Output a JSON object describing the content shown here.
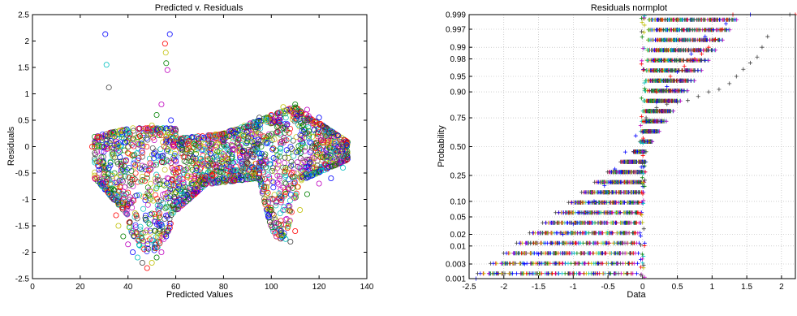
{
  "chart_data": [
    {
      "type": "scatter",
      "title": "Predicted v. Residuals",
      "xlabel": "Predicted Values",
      "ylabel": "Residuals",
      "xlim": [
        0,
        140
      ],
      "ylim": [
        -2.5,
        2.5
      ],
      "xticks": [
        "0",
        "20",
        "40",
        "60",
        "80",
        "100",
        "120",
        "140"
      ],
      "yticks": [
        "-2.5",
        "-2",
        "-1.5",
        "-1",
        "-0.5",
        "0",
        "0.5",
        "1",
        "1.5",
        "2",
        "2.5"
      ],
      "grid": false,
      "marker": "circle",
      "colors": [
        "#0000ff",
        "#008000",
        "#ff0000",
        "#00bfbf",
        "#bf00bf",
        "#bfbf00",
        "#404040"
      ],
      "series": [
        {
          "values": [
            [
              30.5,
              2.13
            ],
            [
              31,
              1.55
            ],
            [
              32,
              1.12
            ],
            [
              55.5,
              1.95
            ],
            [
              55.8,
              1.78
            ],
            [
              56,
              1.58
            ],
            [
              56.5,
              1.45
            ],
            [
              57.5,
              2.13
            ],
            [
              27,
              0.0
            ],
            [
              26,
              0.0
            ],
            [
              25,
              0.0
            ],
            [
              28,
              0.0
            ],
            [
              29,
              0.0
            ],
            [
              30,
              0.0
            ],
            [
              32,
              -0.4
            ],
            [
              33,
              -0.7
            ],
            [
              34,
              -1.0
            ],
            [
              35,
              -1.3
            ],
            [
              36,
              -1.5
            ],
            [
              38,
              -1.7
            ],
            [
              40,
              -1.85
            ],
            [
              42,
              -2.0
            ],
            [
              44,
              -2.1
            ],
            [
              46,
              -2.2
            ],
            [
              48,
              -2.3
            ],
            [
              50,
              -2.2
            ],
            [
              52,
              -2.1
            ],
            [
              54,
              -2.0
            ],
            [
              56,
              -1.7
            ],
            [
              40,
              0.3
            ],
            [
              42,
              0.15
            ],
            [
              45,
              0.2
            ],
            [
              50,
              0.4
            ],
            [
              52,
              0.6
            ],
            [
              54,
              0.8
            ],
            [
              58,
              0.5
            ],
            [
              60,
              0.2
            ],
            [
              62,
              0.1
            ],
            [
              65,
              0.05
            ],
            [
              70,
              0.0
            ],
            [
              75,
              0.05
            ],
            [
              80,
              0.1
            ],
            [
              85,
              0.25
            ],
            [
              90,
              0.4
            ],
            [
              95,
              0.55
            ],
            [
              100,
              0.6
            ],
            [
              105,
              0.75
            ],
            [
              110,
              0.8
            ],
            [
              115,
              0.7
            ],
            [
              120,
              0.55
            ],
            [
              125,
              0.3
            ],
            [
              130,
              0.0
            ],
            [
              95,
              -0.5
            ],
            [
              98,
              -0.9
            ],
            [
              100,
              -1.2
            ],
            [
              102,
              -1.45
            ],
            [
              104,
              -1.6
            ],
            [
              106,
              -1.75
            ],
            [
              108,
              -1.8
            ],
            [
              110,
              -1.6
            ],
            [
              112,
              -1.2
            ],
            [
              115,
              -0.9
            ],
            [
              120,
              -0.7
            ],
            [
              125,
              -0.6
            ],
            [
              130,
              -0.4
            ],
            [
              132,
              -0.2
            ],
            [
              60,
              -0.5
            ],
            [
              65,
              -0.55
            ],
            [
              70,
              -0.65
            ],
            [
              75,
              -0.7
            ],
            [
              80,
              -0.6
            ],
            [
              85,
              -0.45
            ],
            [
              90,
              -0.3
            ]
          ]
        }
      ]
    },
    {
      "type": "scatter",
      "title": "Residuals normplot",
      "xlabel": "Data",
      "ylabel": "Probability",
      "xlim": [
        -2.5,
        2.2
      ],
      "xticks": [
        "-2.5",
        "-2",
        "-1.5",
        "-1",
        "-0.5",
        "0",
        "0.5",
        "1",
        "1.5",
        "2"
      ],
      "yticks": [
        "0.001",
        "0.003",
        "0.01",
        "0.02",
        "0.05",
        "0.10",
        "0.25",
        "0.50",
        "0.75",
        "0.90",
        "0.95",
        "0.98",
        "0.99",
        "0.997",
        "0.999"
      ],
      "yscale": "normal-probability",
      "grid": true,
      "marker": "plus",
      "colors": [
        "#0000ff",
        "#008000",
        "#ff0000",
        "#00bfbf",
        "#bf00bf",
        "#bfbf00",
        "#404040"
      ],
      "series": [
        {
          "values": [
            [
              -2.4,
              0.001
            ],
            [
              -2.1,
              0.0015
            ],
            [
              -1.7,
              0.003
            ],
            [
              -1.5,
              0.006
            ],
            [
              -1.3,
              0.012
            ],
            [
              -1.15,
              0.02
            ],
            [
              -1.0,
              0.035
            ],
            [
              -0.85,
              0.06
            ],
            [
              -0.7,
              0.1
            ],
            [
              -0.55,
              0.18
            ],
            [
              -0.4,
              0.3
            ],
            [
              -0.25,
              0.45
            ],
            [
              -0.1,
              0.6
            ],
            [
              0.05,
              0.72
            ],
            [
              0.2,
              0.85
            ],
            [
              0.35,
              0.92
            ],
            [
              0.5,
              0.96
            ],
            [
              0.7,
              0.985
            ],
            [
              0.9,
              0.995
            ],
            [
              1.2,
              0.998
            ],
            [
              1.55,
              0.999
            ]
          ]
        },
        {
          "values": [
            [
              0.05,
              0.75
            ],
            [
              0.2,
              0.82
            ],
            [
              0.35,
              0.84
            ],
            [
              0.5,
              0.85
            ],
            [
              0.65,
              0.86
            ],
            [
              0.8,
              0.88
            ],
            [
              0.95,
              0.9
            ],
            [
              1.1,
              0.91
            ],
            [
              1.25,
              0.93
            ],
            [
              1.35,
              0.95
            ],
            [
              1.45,
              0.965
            ],
            [
              1.55,
              0.975
            ],
            [
              1.65,
              0.982
            ],
            [
              1.72,
              0.99
            ],
            [
              1.8,
              0.995
            ],
            [
              2.12,
              0.999
            ]
          ]
        },
        {
          "values": [
            [
              0.02,
              0.72
            ],
            [
              0.2,
              0.9
            ],
            [
              0.4,
              0.95
            ],
            [
              0.6,
              0.97
            ],
            [
              0.75,
              0.98
            ],
            [
              0.85,
              0.985
            ],
            [
              0.95,
              0.99
            ],
            [
              1.05,
              0.994
            ],
            [
              1.15,
              0.997
            ],
            [
              1.3,
              0.999
            ],
            [
              2.2,
              0.999
            ]
          ]
        }
      ]
    }
  ]
}
